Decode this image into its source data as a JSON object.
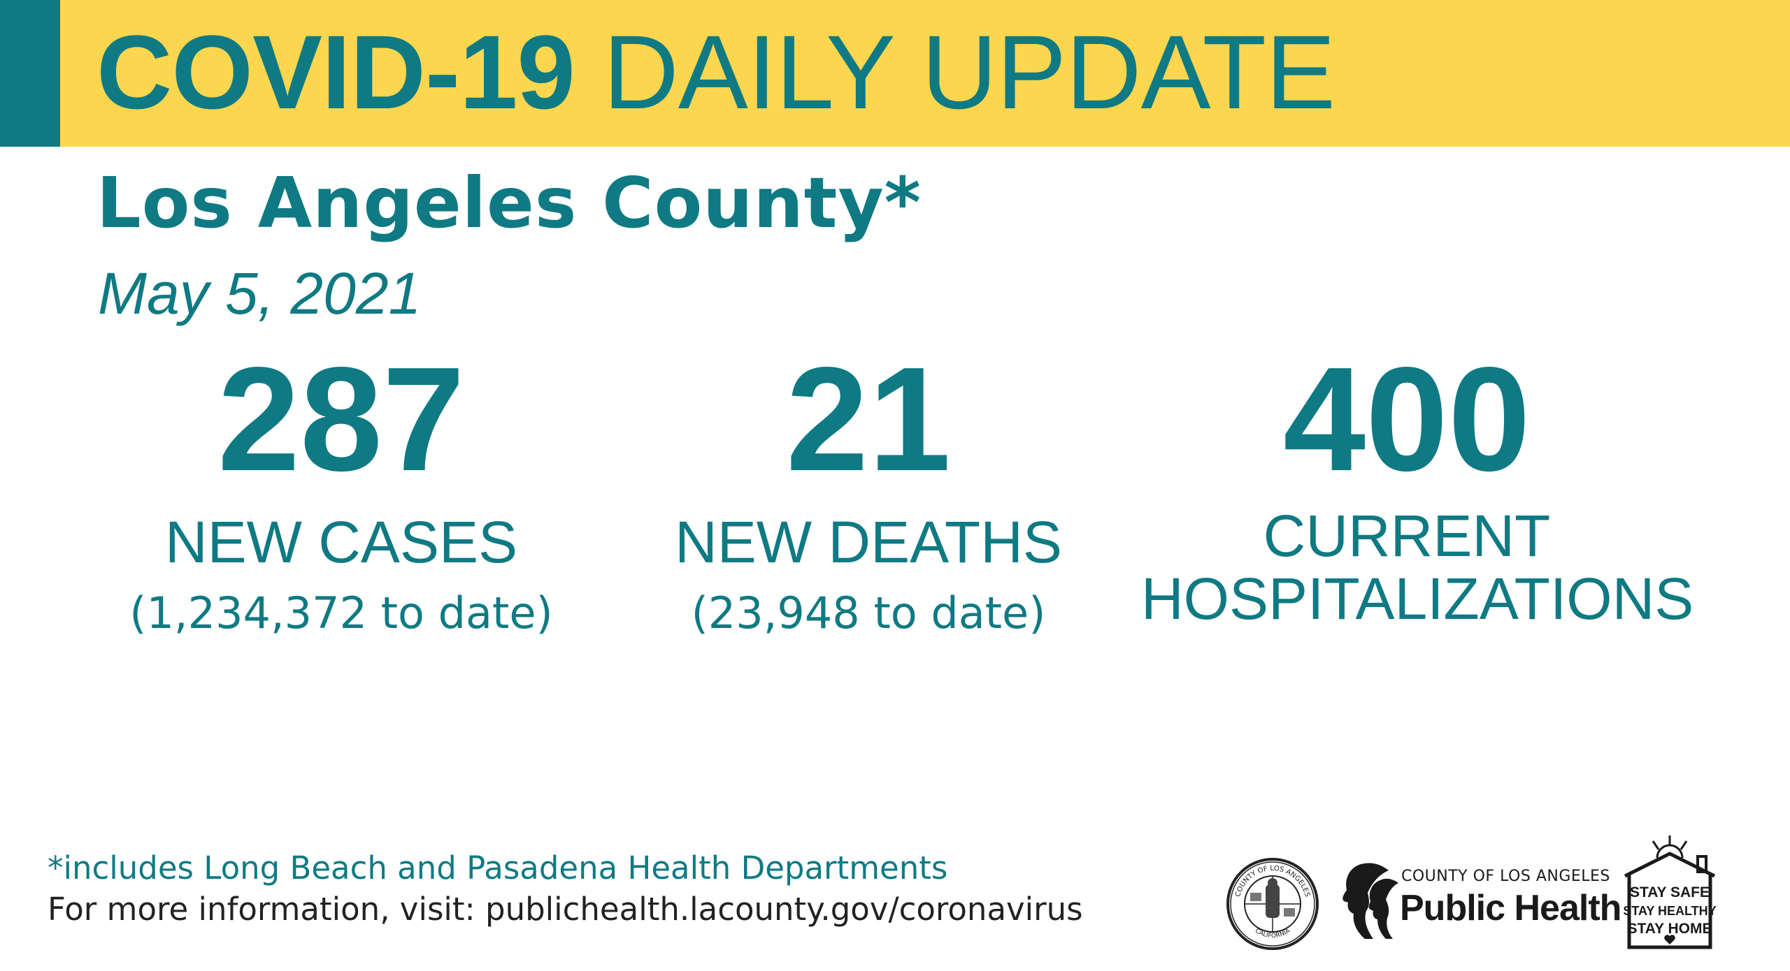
{
  "banner": {
    "title_bold": "COVID-19",
    "title_rest": " DAILY UPDATE",
    "background": "#fdd64f",
    "accent": "#0f7a83"
  },
  "header": {
    "subtitle": "Los Angeles County*",
    "date": "May 5, 2021"
  },
  "stats": [
    {
      "number": "287",
      "label": "NEW CASES",
      "sub": "(1,234,372 to date)"
    },
    {
      "number": "21",
      "label": "NEW DEATHS",
      "sub": "(23,948 to date)"
    },
    {
      "number": "400",
      "label_line1": "CURRENT",
      "label_line2": "HOSPITALIZATIONS"
    }
  ],
  "footer": {
    "note": "*includes Long Beach and Pasadena Health Departments",
    "info_prefix": "For more information, visit: ",
    "info_url": "publichealth.lacounty.gov/coronavirus"
  },
  "logos": {
    "seal_top": "COUNTY OF LOS ANGELES",
    "seal_bottom": "CALIFORNIA",
    "public_health_top": "COUNTY OF LOS ANGELES",
    "public_health_main": "Public Health",
    "stay_lines": [
      "STAY SAFE",
      "STAY HEALTHY",
      "STAY HOME"
    ]
  },
  "colors": {
    "teal": "#0f7a83",
    "text_dark": "#222222"
  }
}
